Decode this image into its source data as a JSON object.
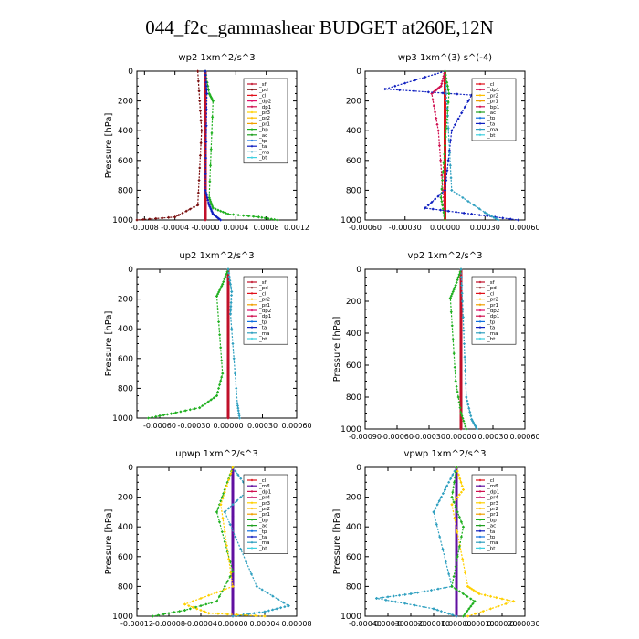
{
  "page": {
    "title": "044_f2c_gammashear  BUDGET at260E,12N"
  },
  "colors": {
    "sf": "#c0102a",
    "pd": "#7a1010",
    "cl": "#e0101a",
    "dp2": "#e0106a",
    "dp1": "#d01050",
    "pr3": "#ffd000",
    "pr2": "#ffc000",
    "pr1": "#f0a000",
    "bp": "#20b020",
    "ac": "#20a020",
    "tp": "#1070e0",
    "ta": "#1020c0",
    "ma": "#30a0c0",
    "bt": "#40d0e0",
    "mfl": "#6010a0",
    "pr4": "#d04080"
  },
  "chart_data": [
    {
      "id": "wp2",
      "type": "line",
      "title": "wp2  1xm^2/s^3",
      "ylabel": "Pressure [hPa]",
      "ylim": [
        1000,
        0
      ],
      "xlim": [
        -0.0009,
        0.0012
      ],
      "yticks": [
        0,
        200,
        400,
        600,
        800,
        1000
      ],
      "xticks": [
        -0.0008,
        -0.0004,
        0.0,
        0.0004,
        0.0008,
        0.0012
      ],
      "xtick_labels": [
        "-0.0008",
        "-0.0004",
        "-0.0000",
        "0.0004",
        "0.0008",
        "0.0012"
      ],
      "legend": [
        "_sf",
        "_pd",
        "_cl",
        "_dp2",
        "_dp1",
        "_pr3",
        "_pr2",
        "_pr1",
        "_bp",
        "_ac",
        "_tp",
        "_ta",
        "_ma",
        "_bt"
      ],
      "series": [
        {
          "name": "_sf",
          "color": "sf",
          "x": [
            0,
            0,
            0,
            0,
            0
          ],
          "y": [
            0,
            250,
            500,
            750,
            1000
          ]
        },
        {
          "name": "_pd",
          "color": "pd",
          "x": [
            -0.0001,
            -5e-05,
            -0.0001,
            -0.0004,
            -0.0009
          ],
          "y": [
            0,
            400,
            900,
            980,
            1000
          ]
        },
        {
          "name": "_bp",
          "color": "bp",
          "x": [
            0,
            5e-05,
            0.0001,
            5e-05,
            0.0001,
            0.0003,
            0.0007,
            0.00095
          ],
          "y": [
            0,
            150,
            200,
            850,
            920,
            960,
            980,
            1000
          ]
        },
        {
          "name": "_ta",
          "color": "ta",
          "x": [
            0,
            2e-05,
            0,
            5e-05,
            0.0001,
            0.0002
          ],
          "y": [
            0,
            150,
            800,
            900,
            960,
            1000
          ]
        }
      ]
    },
    {
      "id": "wp3",
      "type": "line",
      "title": "wp3  1xm^(3) s^(-4)",
      "ylabel": "",
      "ylim": [
        1000,
        0
      ],
      "xlim": [
        -0.0006,
        0.0006
      ],
      "yticks": [
        0,
        200,
        400,
        600,
        800,
        1000
      ],
      "xticks": [
        -0.0006,
        -0.0003,
        0.0,
        0.0003,
        0.0006
      ],
      "xtick_labels": [
        "-0.00060",
        "-0.00030",
        "0.00000",
        "0.00030",
        "0.00060"
      ],
      "legend": [
        "_cl",
        "_dp1",
        "_pr2",
        "_pr1",
        "_bp1",
        "_ac",
        "_tp",
        "_ta",
        "_ma",
        "_bt"
      ],
      "series": [
        {
          "name": "_cl",
          "color": "cl",
          "x": [
            0,
            0,
            0,
            0
          ],
          "y": [
            0,
            330,
            660,
            1000
          ]
        },
        {
          "name": "_dp1",
          "color": "dp1",
          "x": [
            0,
            -3e-05,
            -0.0001,
            -5e-05,
            0
          ],
          "y": [
            0,
            100,
            150,
            400,
            1000
          ]
        },
        {
          "name": "_ta",
          "color": "ta",
          "x": [
            0,
            -0.00045,
            0.0002,
            5e-05,
            0,
            -0.00015,
            0.0002,
            0.00055
          ],
          "y": [
            0,
            120,
            160,
            400,
            800,
            920,
            960,
            1000
          ]
        },
        {
          "name": "_ma",
          "color": "ma",
          "x": [
            0,
            2e-05,
            5e-05,
            0.0003,
            0.0004
          ],
          "y": [
            0,
            300,
            800,
            950,
            1000
          ]
        },
        {
          "name": "_bp1",
          "color": "bp",
          "x": [
            0,
            3e-05,
            0,
            -3e-05,
            0
          ],
          "y": [
            0,
            150,
            500,
            850,
            1000
          ]
        }
      ]
    },
    {
      "id": "up2",
      "type": "line",
      "title": "up2  1xm^2/s^3",
      "ylabel": "Pressure [hPa]",
      "ylim": [
        1000,
        0
      ],
      "xlim": [
        -0.0008,
        0.0006
      ],
      "yticks": [
        0,
        200,
        400,
        600,
        800,
        1000
      ],
      "xticks": [
        -0.0006,
        -0.0003,
        0.0,
        0.0003,
        0.0006
      ],
      "xtick_labels": [
        "-0.00060",
        "-0.00030",
        "0.00000",
        "0.00030",
        "0.00060"
      ],
      "legend": [
        "_sf",
        "_pd",
        "_cl",
        "_pr2",
        "_pr1",
        "_dp2",
        "_dp1",
        "_tp",
        "_ta",
        "_ma",
        "_bt"
      ],
      "series": [
        {
          "name": "_sf",
          "color": "sf",
          "x": [
            0,
            0,
            0,
            0
          ],
          "y": [
            0,
            330,
            660,
            1000
          ]
        },
        {
          "name": "_dp2",
          "color": "bp",
          "x": [
            0,
            -5e-05,
            -0.0001,
            -5e-05,
            -0.0001,
            -0.00025,
            -0.0005,
            -0.0007
          ],
          "y": [
            0,
            100,
            180,
            700,
            850,
            930,
            970,
            1000
          ]
        },
        {
          "name": "_ma",
          "color": "ma",
          "x": [
            0,
            3e-05,
            2e-05,
            8e-05,
            0.0001
          ],
          "y": [
            0,
            150,
            300,
            900,
            1000
          ]
        }
      ]
    },
    {
      "id": "vp2",
      "type": "line",
      "title": "vp2  1xm^2/s^3",
      "ylabel": "Pressure [hPa]",
      "ylim": [
        1000,
        0
      ],
      "xlim": [
        -0.0009,
        0.0006
      ],
      "yticks": [
        0,
        200,
        400,
        600,
        800,
        1000
      ],
      "xticks": [
        -0.0009,
        -0.0006,
        -0.0003,
        0.0,
        0.0003,
        0.0006
      ],
      "xtick_labels": [
        "-0.00090",
        "-0.00060",
        "-0.00030",
        "0.00000",
        "0.00030",
        "0.00060"
      ],
      "legend": [
        "_sf",
        "_pd",
        "_cl",
        "_pr2",
        "_pr1",
        "_dp2",
        "_dp1",
        "_tp",
        "_ta",
        "_ma",
        "_bt"
      ],
      "series": [
        {
          "name": "_sf",
          "color": "sf",
          "x": [
            0,
            0,
            0,
            0
          ],
          "y": [
            0,
            330,
            660,
            1000
          ]
        },
        {
          "name": "_dp2",
          "color": "bp",
          "x": [
            0,
            -5e-05,
            -0.0001,
            -5e-05,
            0,
            5e-05
          ],
          "y": [
            0,
            100,
            180,
            700,
            900,
            1000
          ]
        },
        {
          "name": "_ma",
          "color": "ma",
          "x": [
            0,
            2e-05,
            5e-05,
            0.0001,
            0.00015
          ],
          "y": [
            0,
            300,
            800,
            940,
            1000
          ]
        }
      ]
    },
    {
      "id": "upwp",
      "type": "line",
      "title": "upwp  1xm^2/s^3",
      "ylabel": "Pressure [hPa]",
      "ylim": [
        1000,
        0
      ],
      "xlim": [
        -0.00012,
        8e-05
      ],
      "yticks": [
        0,
        200,
        400,
        600,
        800,
        1000
      ],
      "xticks": [
        -0.00012,
        -8e-05,
        -4e-05,
        0.0,
        4e-05,
        8e-05
      ],
      "xtick_labels": [
        "-0.00012",
        "-0.00008",
        "-0.00004",
        "0.00000",
        "0.00004",
        "0.00008"
      ],
      "legend": [
        "_cl",
        "_mfl",
        "_dp1",
        "_pr4",
        "_pr3",
        "_pr2",
        "_pr1",
        "_bp",
        "_ac",
        "_tp",
        "_ta",
        "_ma",
        "_bt"
      ],
      "series": [
        {
          "name": "_mfl",
          "color": "mfl",
          "x": [
            0,
            0,
            0,
            0
          ],
          "y": [
            0,
            330,
            660,
            1000
          ]
        },
        {
          "name": "_ma",
          "color": "ma",
          "x": [
            0,
            2e-05,
            -1e-05,
            3e-05,
            7e-05,
            4e-05,
            0
          ],
          "y": [
            0,
            150,
            300,
            800,
            930,
            970,
            1000
          ]
        },
        {
          "name": "_bp",
          "color": "bp",
          "x": [
            0,
            -1e-05,
            -2e-05,
            0,
            -2e-05,
            -6e-05,
            -0.0001
          ],
          "y": [
            0,
            150,
            300,
            700,
            900,
            960,
            1000
          ]
        },
        {
          "name": "_pr3",
          "color": "pr3",
          "x": [
            0,
            -1.5e-05,
            0,
            -6e-05,
            -3e-05,
            4e-05
          ],
          "y": [
            0,
            250,
            800,
            920,
            980,
            1000
          ]
        }
      ]
    },
    {
      "id": "vpwp",
      "type": "line",
      "title": "vpwp  1xm^2/s^3",
      "ylabel": "Pressure [hPa]",
      "ylim": [
        1000,
        0
      ],
      "xlim": [
        -0.0004,
        0.0003
      ],
      "yticks": [
        0,
        200,
        400,
        600,
        800,
        1000
      ],
      "xticks": [
        -0.0004,
        -0.0003,
        -0.0002,
        -0.0001,
        0.0,
        0.0001,
        0.0002,
        0.0003
      ],
      "xtick_labels": [
        "-0.00040",
        "-0.00030",
        "-0.00020",
        "-0.00010",
        "0.00000",
        "0.00010",
        "0.00020",
        "0.00030"
      ],
      "legend": [
        "_cl",
        "_mfl",
        "_dp1",
        "_pr4",
        "_pr3",
        "_pr2",
        "_pr1",
        "_bp",
        "_ac",
        "_ta",
        "_tp",
        "_ma",
        "_bt"
      ],
      "series": [
        {
          "name": "_mfl",
          "color": "mfl",
          "x": [
            0,
            0,
            0,
            0
          ],
          "y": [
            0,
            330,
            660,
            1000
          ]
        },
        {
          "name": "_ma",
          "color": "ma",
          "x": [
            0,
            -5e-05,
            -0.0001,
            -2e-05,
            -0.0002,
            -0.00035,
            -0.0001,
            0
          ],
          "y": [
            0,
            150,
            300,
            800,
            850,
            880,
            950,
            1000
          ]
        },
        {
          "name": "_pr3",
          "color": "pr3",
          "x": [
            0,
            3e-05,
            -2e-05,
            5e-05,
            0.0001,
            0.00025,
            5e-05
          ],
          "y": [
            0,
            150,
            250,
            800,
            850,
            900,
            1000
          ]
        },
        {
          "name": "_bp",
          "color": "bp",
          "x": [
            0,
            -2e-05,
            3e-05,
            -2e-05,
            8e-05,
            3e-05
          ],
          "y": [
            0,
            200,
            400,
            800,
            900,
            1000
          ]
        }
      ]
    }
  ]
}
